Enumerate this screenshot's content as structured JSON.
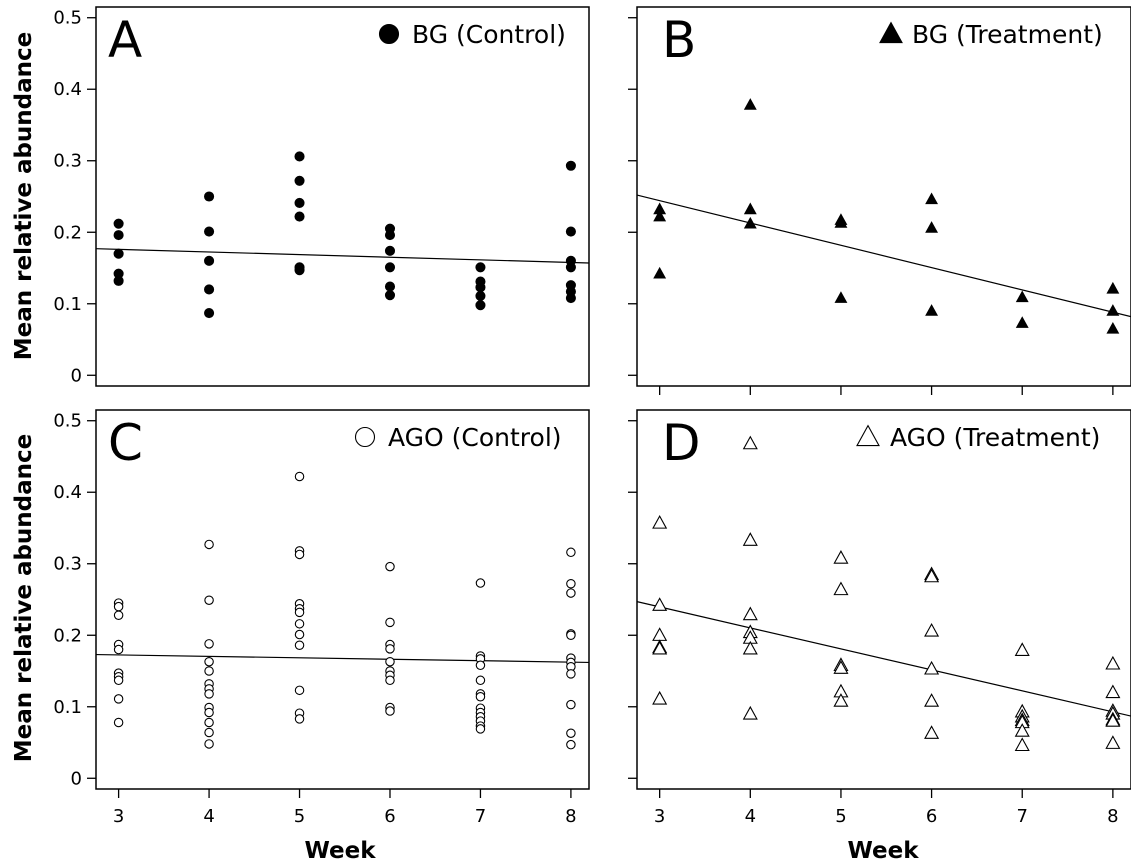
{
  "shared": {
    "ylabel": "Mean relative abundance",
    "xlabel": "Week",
    "x_ticks": [
      3,
      4,
      5,
      6,
      7,
      8
    ],
    "y_ticks": [
      "0",
      "0.1",
      "0.2",
      "0.3",
      "0.4",
      "0.5"
    ]
  },
  "chart_data": [
    {
      "id": "A",
      "type": "scatter",
      "panel_label": "A",
      "legend": "BG (Control)",
      "marker": "filled-circle",
      "xlim": [
        2.75,
        8.2
      ],
      "ylim": [
        -0.015,
        0.515
      ],
      "x_ticks_shown": false,
      "points": [
        [
          3,
          0.212
        ],
        [
          3,
          0.196
        ],
        [
          3,
          0.17
        ],
        [
          3,
          0.142
        ],
        [
          3,
          0.132
        ],
        [
          4,
          0.25
        ],
        [
          4,
          0.201
        ],
        [
          4,
          0.16
        ],
        [
          4,
          0.12
        ],
        [
          4,
          0.087
        ],
        [
          5,
          0.306
        ],
        [
          5,
          0.272
        ],
        [
          5,
          0.241
        ],
        [
          5,
          0.222
        ],
        [
          5,
          0.151
        ],
        [
          5,
          0.147
        ],
        [
          6,
          0.205
        ],
        [
          6,
          0.196
        ],
        [
          6,
          0.174
        ],
        [
          6,
          0.151
        ],
        [
          6,
          0.124
        ],
        [
          6,
          0.112
        ],
        [
          7,
          0.151
        ],
        [
          7,
          0.131
        ],
        [
          7,
          0.123
        ],
        [
          7,
          0.111
        ],
        [
          7,
          0.098
        ],
        [
          8,
          0.293
        ],
        [
          8,
          0.201
        ],
        [
          8,
          0.16
        ],
        [
          8,
          0.151
        ],
        [
          8,
          0.126
        ],
        [
          8,
          0.117
        ],
        [
          8,
          0.108
        ]
      ],
      "trend": {
        "x": [
          2.75,
          8.2
        ],
        "y": [
          0.177,
          0.157
        ]
      }
    },
    {
      "id": "B",
      "type": "scatter",
      "panel_label": "B",
      "legend": "BG (Treatment)",
      "marker": "filled-triangle",
      "xlim": [
        2.75,
        8.2
      ],
      "ylim": [
        -0.015,
        0.515
      ],
      "x_ticks_shown": true,
      "points": [
        [
          3,
          0.232
        ],
        [
          3,
          0.222
        ],
        [
          3,
          0.142
        ],
        [
          4,
          0.378
        ],
        [
          4,
          0.232
        ],
        [
          4,
          0.212
        ],
        [
          5,
          0.217
        ],
        [
          5,
          0.213
        ],
        [
          5,
          0.108
        ],
        [
          6,
          0.246
        ],
        [
          6,
          0.206
        ],
        [
          6,
          0.09
        ],
        [
          7,
          0.109
        ],
        [
          7,
          0.073
        ],
        [
          8,
          0.121
        ],
        [
          8,
          0.09
        ],
        [
          8,
          0.065
        ]
      ],
      "trend": {
        "x": [
          2.75,
          8.2
        ],
        "y": [
          0.252,
          0.082
        ]
      }
    },
    {
      "id": "C",
      "type": "scatter",
      "panel_label": "C",
      "legend": "AGO (Control)",
      "marker": "open-circle",
      "xlim": [
        2.75,
        8.2
      ],
      "ylim": [
        -0.015,
        0.515
      ],
      "x_ticks_shown": true,
      "points": [
        [
          3,
          0.245
        ],
        [
          3,
          0.24
        ],
        [
          3,
          0.228
        ],
        [
          3,
          0.187
        ],
        [
          3,
          0.18
        ],
        [
          3,
          0.147
        ],
        [
          3,
          0.142
        ],
        [
          3,
          0.137
        ],
        [
          3,
          0.111
        ],
        [
          3,
          0.078
        ],
        [
          4,
          0.327
        ],
        [
          4,
          0.249
        ],
        [
          4,
          0.188
        ],
        [
          4,
          0.163
        ],
        [
          4,
          0.15
        ],
        [
          4,
          0.132
        ],
        [
          4,
          0.125
        ],
        [
          4,
          0.118
        ],
        [
          4,
          0.099
        ],
        [
          4,
          0.092
        ],
        [
          4,
          0.078
        ],
        [
          4,
          0.064
        ],
        [
          4,
          0.048
        ],
        [
          5,
          0.422
        ],
        [
          5,
          0.318
        ],
        [
          5,
          0.313
        ],
        [
          5,
          0.244
        ],
        [
          5,
          0.237
        ],
        [
          5,
          0.232
        ],
        [
          5,
          0.216
        ],
        [
          5,
          0.201
        ],
        [
          5,
          0.186
        ],
        [
          5,
          0.123
        ],
        [
          5,
          0.091
        ],
        [
          5,
          0.083
        ],
        [
          6,
          0.296
        ],
        [
          6,
          0.218
        ],
        [
          6,
          0.187
        ],
        [
          6,
          0.181
        ],
        [
          6,
          0.163
        ],
        [
          6,
          0.15
        ],
        [
          6,
          0.144
        ],
        [
          6,
          0.137
        ],
        [
          6,
          0.099
        ],
        [
          6,
          0.094
        ],
        [
          7,
          0.273
        ],
        [
          7,
          0.171
        ],
        [
          7,
          0.167
        ],
        [
          7,
          0.158
        ],
        [
          7,
          0.137
        ],
        [
          7,
          0.118
        ],
        [
          7,
          0.114
        ],
        [
          7,
          0.098
        ],
        [
          7,
          0.092
        ],
        [
          7,
          0.086
        ],
        [
          7,
          0.08
        ],
        [
          7,
          0.073
        ],
        [
          7,
          0.069
        ],
        [
          8,
          0.316
        ],
        [
          8,
          0.272
        ],
        [
          8,
          0.259
        ],
        [
          8,
          0.202
        ],
        [
          8,
          0.2
        ],
        [
          8,
          0.168
        ],
        [
          8,
          0.162
        ],
        [
          8,
          0.156
        ],
        [
          8,
          0.146
        ],
        [
          8,
          0.103
        ],
        [
          8,
          0.063
        ],
        [
          8,
          0.047
        ]
      ],
      "trend": {
        "x": [
          2.75,
          8.2
        ],
        "y": [
          0.173,
          0.162
        ]
      }
    },
    {
      "id": "D",
      "type": "scatter",
      "panel_label": "D",
      "legend": "AGO (Treatment)",
      "marker": "open-triangle",
      "xlim": [
        2.75,
        8.2
      ],
      "ylim": [
        -0.015,
        0.515
      ],
      "x_ticks_shown": true,
      "points": [
        [
          3,
          0.357
        ],
        [
          3,
          0.242
        ],
        [
          3,
          0.2
        ],
        [
          3,
          0.183
        ],
        [
          3,
          0.181
        ],
        [
          3,
          0.111
        ],
        [
          4,
          0.468
        ],
        [
          4,
          0.333
        ],
        [
          4,
          0.229
        ],
        [
          4,
          0.204
        ],
        [
          4,
          0.196
        ],
        [
          4,
          0.181
        ],
        [
          4,
          0.09
        ],
        [
          5,
          0.308
        ],
        [
          5,
          0.264
        ],
        [
          5,
          0.158
        ],
        [
          5,
          0.154
        ],
        [
          5,
          0.121
        ],
        [
          5,
          0.108
        ],
        [
          6,
          0.285
        ],
        [
          6,
          0.282
        ],
        [
          6,
          0.206
        ],
        [
          6,
          0.153
        ],
        [
          6,
          0.108
        ],
        [
          6,
          0.063
        ],
        [
          7,
          0.179
        ],
        [
          7,
          0.093
        ],
        [
          7,
          0.086
        ],
        [
          7,
          0.081
        ],
        [
          7,
          0.078
        ],
        [
          7,
          0.066
        ],
        [
          7,
          0.046
        ],
        [
          8,
          0.16
        ],
        [
          8,
          0.12
        ],
        [
          8,
          0.094
        ],
        [
          8,
          0.09
        ],
        [
          8,
          0.082
        ],
        [
          8,
          0.08
        ],
        [
          8,
          0.049
        ]
      ],
      "trend": {
        "x": [
          2.75,
          8.2
        ],
        "y": [
          0.247,
          0.087
        ]
      }
    }
  ]
}
